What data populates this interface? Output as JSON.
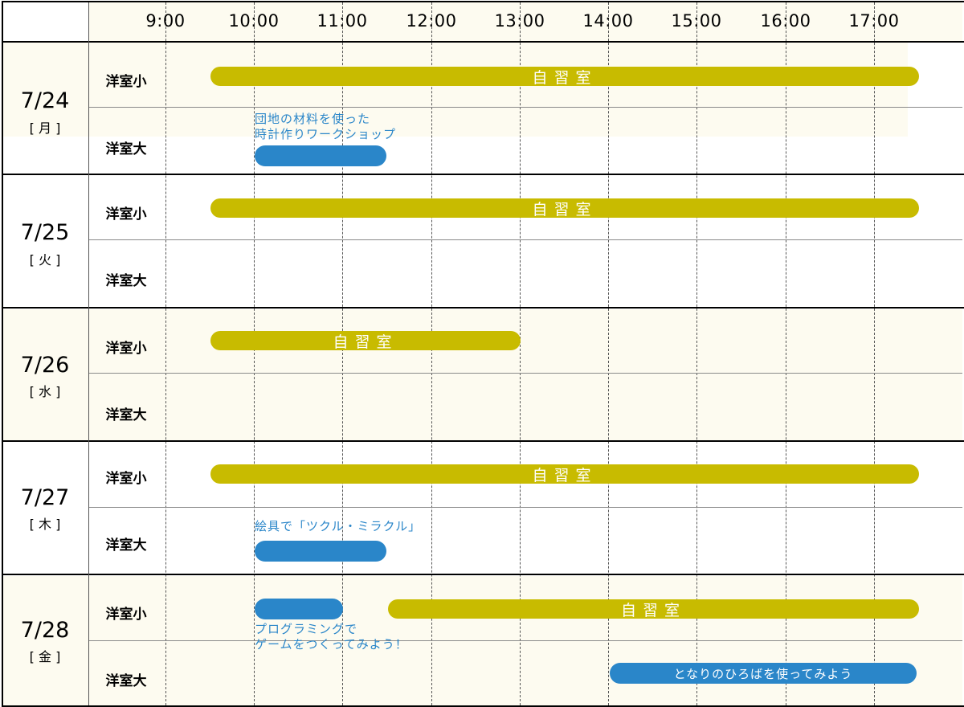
{
  "colors": {
    "self_study": "#c8bb00",
    "event": "#2a86c9",
    "grid": "#555555",
    "border": "#000000",
    "tint": "#fdfbf0"
  },
  "times": [
    "9:00",
    "10:00",
    "11:00",
    "12:00",
    "13:00",
    "14:00",
    "15:00",
    "16:00",
    "17:00"
  ],
  "days": [
    {
      "date": "7/24",
      "weekday": "[ 月 ]",
      "rooms": [
        "洋室小",
        "洋室大"
      ]
    },
    {
      "date": "7/25",
      "weekday": "[ 火 ]",
      "rooms": [
        "洋室小",
        "洋室大"
      ]
    },
    {
      "date": "7/26",
      "weekday": "[ 水 ]",
      "rooms": [
        "洋室小",
        "洋室大"
      ]
    },
    {
      "date": "7/27",
      "weekday": "[ 木 ]",
      "rooms": [
        "洋室小",
        "洋室大"
      ]
    },
    {
      "date": "7/28",
      "weekday": "[ 金 ]",
      "rooms": [
        "洋室小",
        "洋室大"
      ]
    }
  ],
  "events": {
    "d1_small": {
      "label": "自習室"
    },
    "d1_large": {
      "line1": "団地の材料を使った",
      "line2": "時計作りワークショップ"
    },
    "d2_small": {
      "label": "自習室"
    },
    "d3_small": {
      "label": "自習室"
    },
    "d4_small": {
      "label": "自習室"
    },
    "d4_large": {
      "line1": "絵具で「ツクル・ミラクル」"
    },
    "d5_small_prog": {
      "line1": "プログラミングで",
      "line2": "ゲームをつくってみよう！"
    },
    "d5_small_study": {
      "label": "自習室"
    },
    "d5_large": {
      "label": "となりのひろばを使ってみよう"
    }
  }
}
